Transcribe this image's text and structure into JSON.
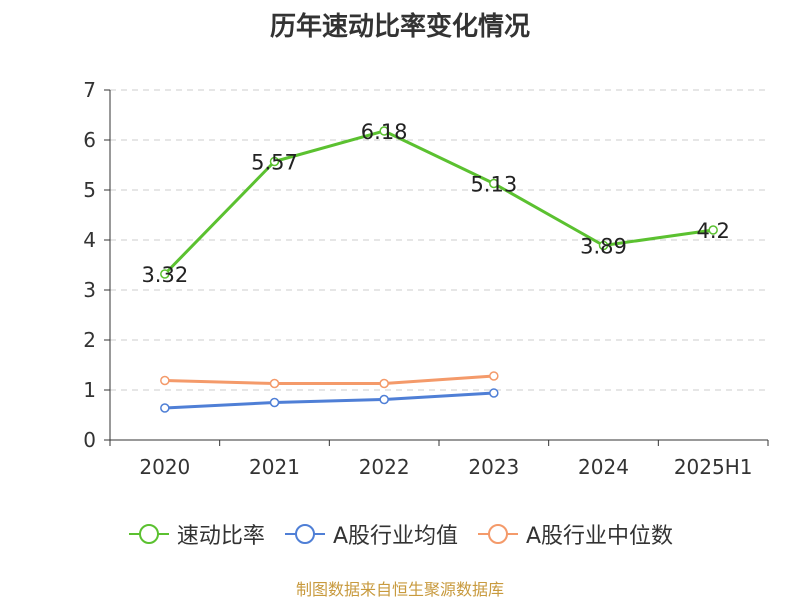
{
  "chart_data": {
    "type": "line",
    "title": "历年速动比率变化情况",
    "categories": [
      "2020",
      "2021",
      "2022",
      "2023",
      "2024",
      "2025H1"
    ],
    "y_ticks": [
      "0",
      "1",
      "2",
      "3",
      "4",
      "5",
      "6",
      "7"
    ],
    "ylim": [
      0,
      7
    ],
    "grid": true,
    "legend_position": "bottom",
    "series": [
      {
        "name": "速动比率",
        "color": "#5bc130",
        "values": [
          3.32,
          5.57,
          6.18,
          5.13,
          3.89,
          4.2
        ],
        "labels": [
          "3.32",
          "5.57",
          "6.18",
          "5.13",
          "3.89",
          "4.2"
        ]
      },
      {
        "name": "A股行业均值",
        "color": "#4f7fd6",
        "values": [
          0.64,
          0.75,
          0.81,
          0.94,
          null,
          null
        ]
      },
      {
        "name": "A股行业中位数",
        "color": "#f49a6a",
        "values": [
          1.19,
          1.13,
          1.13,
          1.28,
          null,
          null
        ]
      }
    ]
  },
  "footer": {
    "source": "制图数据来自恒生聚源数据库"
  }
}
